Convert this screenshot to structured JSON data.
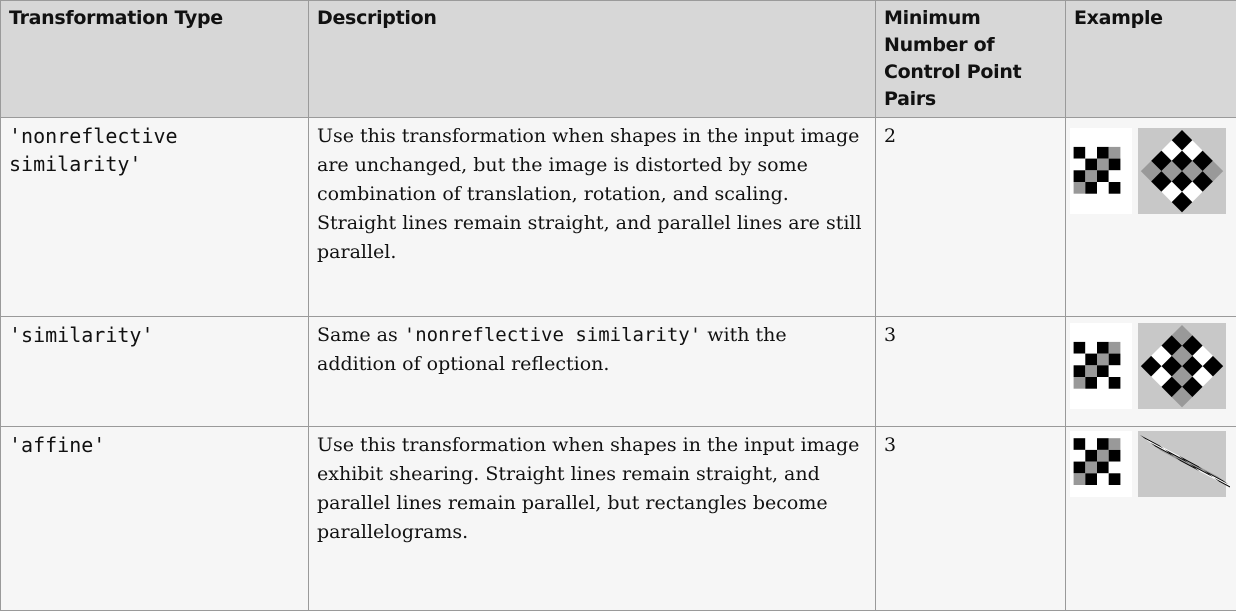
{
  "table": {
    "header": [
      "Transformation Type",
      "Description",
      "Minimum Number of Control Point Pairs",
      "Example"
    ],
    "rows": [
      {
        "type": "'nonreflective similarity'",
        "description": [
          {
            "text": "Use this transformation when shapes in the input image are unchanged, but the image is distorted by some combination of translation, rotation, and scaling. Straight lines remain straight, and parallel lines are still parallel.",
            "code": false
          }
        ],
        "min_pairs": 2
      },
      {
        "type": "'similarity'",
        "description": [
          {
            "text": "Same as ",
            "code": false
          },
          {
            "text": "'nonreflective similarity'",
            "code": true
          },
          {
            "text": " with the addition of optional reflection.",
            "code": false
          }
        ],
        "min_pairs": 3
      },
      {
        "type": "'affine'",
        "description": [
          {
            "text": "Use this transformation when shapes in the input image exhibit shearing. Straight lines remain straight, and parallel lines remain parallel, but rectangles become parallelograms.",
            "code": false
          }
        ],
        "min_pairs": 3
      }
    ]
  }
}
